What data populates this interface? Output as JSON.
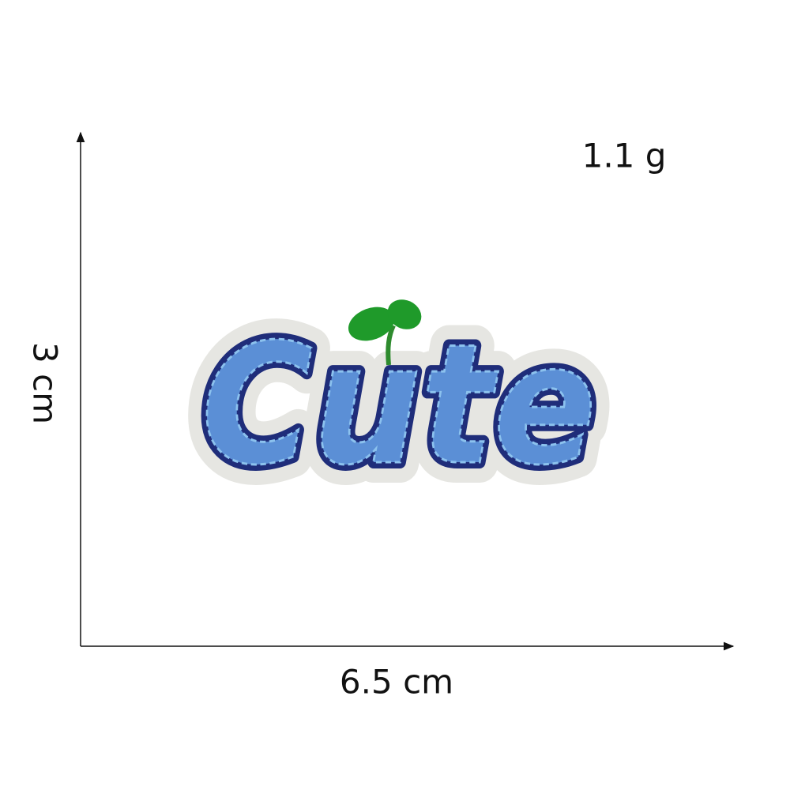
{
  "weight": "1.1 g",
  "height_label": "3 cm",
  "width_label": "6.5 cm",
  "patch": {
    "text": "Cute"
  }
}
